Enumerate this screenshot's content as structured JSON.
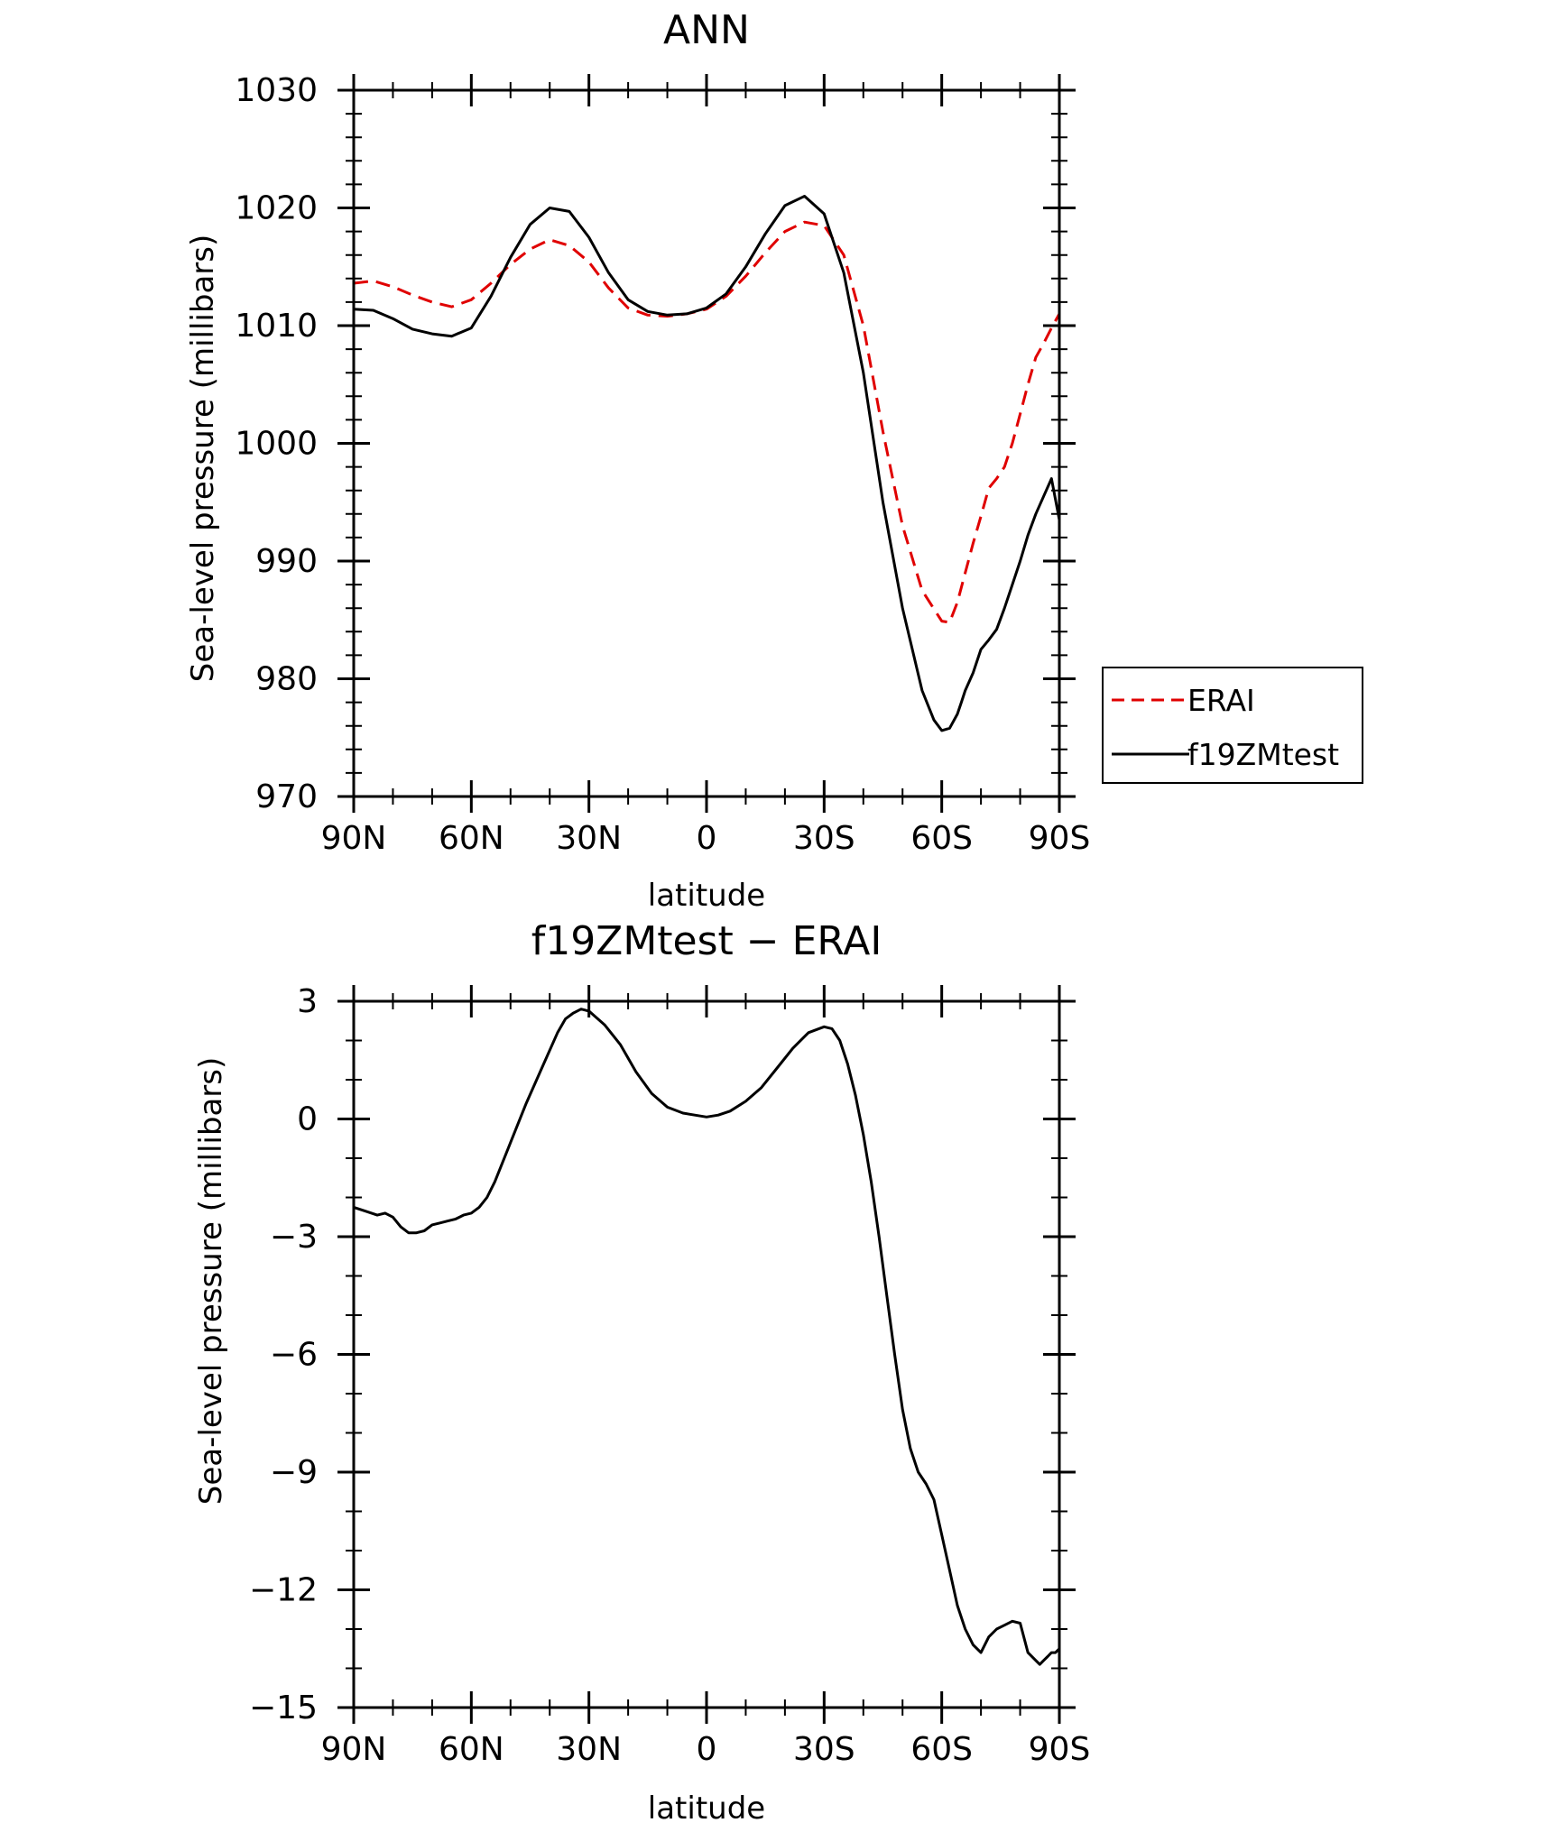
{
  "chart_data": [
    {
      "type": "line",
      "title": "ANN",
      "xlabel": "latitude",
      "ylabel": "Sea-level pressure (millibars)",
      "xlim": [
        90,
        -90
      ],
      "ylim": [
        970,
        1030
      ],
      "x_ticks": [
        {
          "value": 90,
          "label": "90N"
        },
        {
          "value": 60,
          "label": "60N"
        },
        {
          "value": 30,
          "label": "30N"
        },
        {
          "value": 0,
          "label": "0"
        },
        {
          "value": -30,
          "label": "30S"
        },
        {
          "value": -60,
          "label": "60S"
        },
        {
          "value": -90,
          "label": "90S"
        }
      ],
      "y_ticks": [
        {
          "value": 1030,
          "label": "1030"
        },
        {
          "value": 1020,
          "label": "1020"
        },
        {
          "value": 1010,
          "label": "1010"
        },
        {
          "value": 1000,
          "label": "1000"
        },
        {
          "value": 990,
          "label": "990"
        },
        {
          "value": 980,
          "label": "980"
        },
        {
          "value": 970,
          "label": "970"
        }
      ],
      "legend_position": "right",
      "series": [
        {
          "name": "ERAI",
          "color": "#e00000",
          "dash": "dashed",
          "x": [
            90,
            85,
            80,
            75,
            70,
            65,
            60,
            55,
            50,
            45,
            40,
            35,
            30,
            25,
            20,
            15,
            10,
            5,
            0,
            -5,
            -10,
            -15,
            -20,
            -25,
            -30,
            -35,
            -40,
            -45,
            -50,
            -55,
            -60,
            -62,
            -64,
            -66,
            -68,
            -70,
            -72,
            -74,
            -76,
            -78,
            -80,
            -82,
            -84,
            -86,
            -88,
            -90
          ],
          "y": [
            1013.6,
            1013.8,
            1013.3,
            1012.6,
            1012.0,
            1011.6,
            1012.2,
            1013.6,
            1015.2,
            1016.5,
            1017.3,
            1016.8,
            1015.4,
            1013.2,
            1011.5,
            1010.9,
            1010.8,
            1011.0,
            1011.4,
            1012.5,
            1014.2,
            1016.2,
            1018.0,
            1018.8,
            1018.5,
            1016.0,
            1010.0,
            1001.0,
            993.0,
            987.5,
            984.9,
            984.8,
            986.5,
            989.0,
            991.5,
            993.8,
            996.2,
            997.0,
            998.0,
            1000.0,
            1002.5,
            1005.0,
            1007.3,
            1008.5,
            1009.8,
            1011.0
          ]
        },
        {
          "name": "f19ZMtest",
          "color": "#000000",
          "dash": "solid",
          "x": [
            90,
            85,
            80,
            75,
            70,
            65,
            60,
            55,
            50,
            45,
            40,
            35,
            30,
            25,
            20,
            15,
            10,
            5,
            0,
            -5,
            -10,
            -15,
            -20,
            -25,
            -30,
            -35,
            -40,
            -45,
            -50,
            -55,
            -58,
            -60,
            -62,
            -64,
            -65,
            -66,
            -68,
            -70,
            -72,
            -74,
            -76,
            -78,
            -80,
            -82,
            -84,
            -86,
            -88,
            -90
          ],
          "y": [
            1011.4,
            1011.3,
            1010.6,
            1009.7,
            1009.3,
            1009.1,
            1009.8,
            1012.5,
            1015.8,
            1018.6,
            1020.0,
            1019.7,
            1017.5,
            1014.5,
            1012.2,
            1011.2,
            1010.9,
            1011.0,
            1011.5,
            1012.7,
            1015.0,
            1017.8,
            1020.2,
            1021.0,
            1019.5,
            1014.5,
            1006.0,
            995.0,
            986.0,
            979.0,
            976.5,
            975.6,
            975.8,
            977.0,
            978.0,
            979.0,
            980.5,
            982.5,
            983.3,
            984.2,
            986.0,
            988.0,
            990.0,
            992.2,
            994.0,
            995.5,
            997.0,
            993.5
          ]
        }
      ]
    },
    {
      "type": "line",
      "title": "f19ZMtest − ERAI",
      "xlabel": "latitude",
      "ylabel": "Sea-level pressure (millibars)",
      "xlim": [
        90,
        -90
      ],
      "ylim": [
        -15,
        3
      ],
      "x_ticks": [
        {
          "value": 90,
          "label": "90N"
        },
        {
          "value": 60,
          "label": "60N"
        },
        {
          "value": 30,
          "label": "30N"
        },
        {
          "value": 0,
          "label": "0"
        },
        {
          "value": -30,
          "label": "30S"
        },
        {
          "value": -60,
          "label": "60S"
        },
        {
          "value": -90,
          "label": "90S"
        }
      ],
      "y_ticks": [
        {
          "value": 3,
          "label": "3"
        },
        {
          "value": 0,
          "label": "0"
        },
        {
          "value": -3,
          "label": "−3"
        },
        {
          "value": -6,
          "label": "−6"
        },
        {
          "value": -9,
          "label": "−9"
        },
        {
          "value": -12,
          "label": "−12"
        },
        {
          "value": -15,
          "label": "−15"
        }
      ],
      "series": [
        {
          "name": "f19ZMtest − ERAI",
          "color": "#000000",
          "dash": "solid",
          "x": [
            90,
            87,
            84,
            82,
            80,
            78,
            76,
            74,
            72,
            70,
            68,
            66,
            64,
            62,
            60,
            58,
            56,
            54,
            50,
            46,
            42,
            38,
            36,
            34,
            32,
            30,
            26,
            22,
            18,
            14,
            10,
            6,
            3,
            0,
            -3,
            -6,
            -10,
            -14,
            -18,
            -22,
            -26,
            -30,
            -32,
            -34,
            -36,
            -38,
            -40,
            -42,
            -44,
            -46,
            -48,
            -50,
            -52,
            -54,
            -56,
            -58,
            -60,
            -62,
            -64,
            -66,
            -68,
            -70,
            -72,
            -74,
            -76,
            -78,
            -80,
            -82,
            -84,
            -85,
            -86,
            -87,
            -88,
            -89,
            -90
          ],
          "y": [
            -2.25,
            -2.35,
            -2.45,
            -2.4,
            -2.5,
            -2.75,
            -2.9,
            -2.9,
            -2.85,
            -2.7,
            -2.65,
            -2.6,
            -2.55,
            -2.45,
            -2.4,
            -2.25,
            -2.0,
            -1.6,
            -0.6,
            0.4,
            1.3,
            2.2,
            2.55,
            2.7,
            2.8,
            2.75,
            2.4,
            1.9,
            1.2,
            0.65,
            0.3,
            0.15,
            0.1,
            0.05,
            0.1,
            0.2,
            0.45,
            0.8,
            1.3,
            1.8,
            2.2,
            2.35,
            2.3,
            2.0,
            1.4,
            0.6,
            -0.4,
            -1.6,
            -3.0,
            -4.5,
            -6.0,
            -7.4,
            -8.4,
            -9.0,
            -9.3,
            -9.7,
            -10.6,
            -11.5,
            -12.4,
            -13.0,
            -13.4,
            -13.6,
            -13.2,
            -13.0,
            -12.9,
            -12.8,
            -12.85,
            -13.6,
            -13.8,
            -13.9,
            -13.8,
            -13.7,
            -13.6,
            -13.6,
            -13.5
          ]
        }
      ]
    }
  ],
  "legend": {
    "items": [
      {
        "label": "ERAI",
        "color": "#e00000",
        "dash": "dashed"
      },
      {
        "label": "f19ZMtest",
        "color": "#000000",
        "dash": "solid"
      }
    ]
  }
}
